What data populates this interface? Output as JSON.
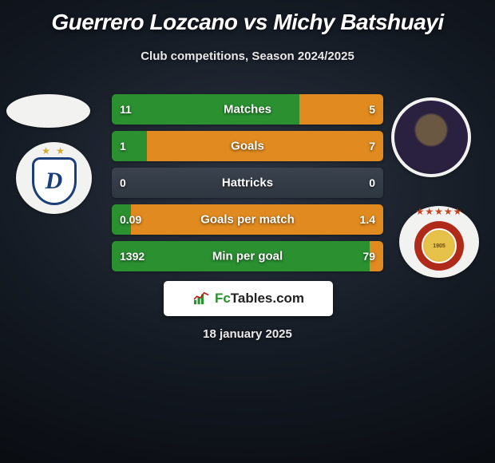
{
  "header": {
    "title": "Guerrero Lozcano vs Michy Batshuayi",
    "subtitle": "Club competitions, Season 2024/2025"
  },
  "colors": {
    "left_fill": "#2a9030",
    "right_fill": "#e08a1f"
  },
  "stats": [
    {
      "label": "Matches",
      "left_val": "11",
      "right_val": "5",
      "left_pct": 69,
      "right_pct": 31
    },
    {
      "label": "Goals",
      "left_val": "1",
      "right_val": "7",
      "left_pct": 13,
      "right_pct": 87
    },
    {
      "label": "Hattricks",
      "left_val": "0",
      "right_val": "0",
      "left_pct": 0,
      "right_pct": 0
    },
    {
      "label": "Goals per match",
      "left_val": "0.09",
      "right_val": "1.4",
      "left_pct": 7,
      "right_pct": 93
    },
    {
      "label": "Min per goal",
      "left_val": "1392",
      "right_val": "79",
      "left_pct": 95,
      "right_pct": 5
    }
  ],
  "brand": {
    "text_prefix": "Fc",
    "text_suffix": "Tables.com"
  },
  "footer": {
    "date": "18 january 2025"
  },
  "crests": {
    "left": {
      "letter": "D",
      "year": "",
      "stars": "★ ★"
    },
    "right": {
      "year": "1905",
      "stars": "★★★★★"
    }
  }
}
